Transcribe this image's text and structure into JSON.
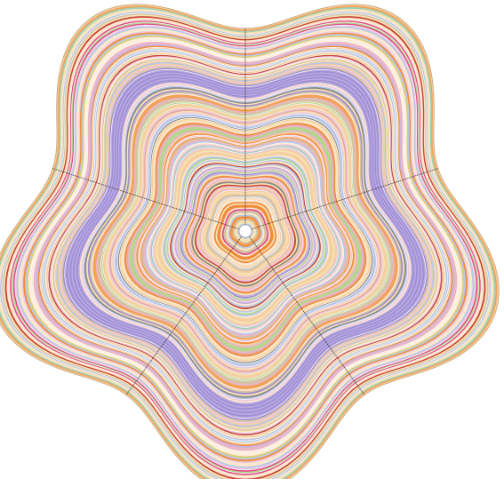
{
  "figure": {
    "lobes": 5,
    "ring_count": 150,
    "divider_lines": 5,
    "palette": [
      "#f4cfa0",
      "#e9b7c9",
      "#c9b3de",
      "#a08fcf",
      "#f2a25a",
      "#e24d8f",
      "#9fd1b8",
      "#d9d07a",
      "#cfcfcf",
      "#8a8a8a",
      "#f7e2b5",
      "#b9c8e6",
      "#c94a3a",
      "#e7a8a0",
      "#b3d78c",
      "#fbe8d0",
      "#9b7fc7",
      "#f08d3c",
      "#d6c3a5",
      "#eec9e0"
    ],
    "accent_band_color": "#9f8fd6",
    "divider_color": "#3a3030",
    "outline_color": "#c6a37a",
    "center_hole_color": "#ffffff"
  }
}
